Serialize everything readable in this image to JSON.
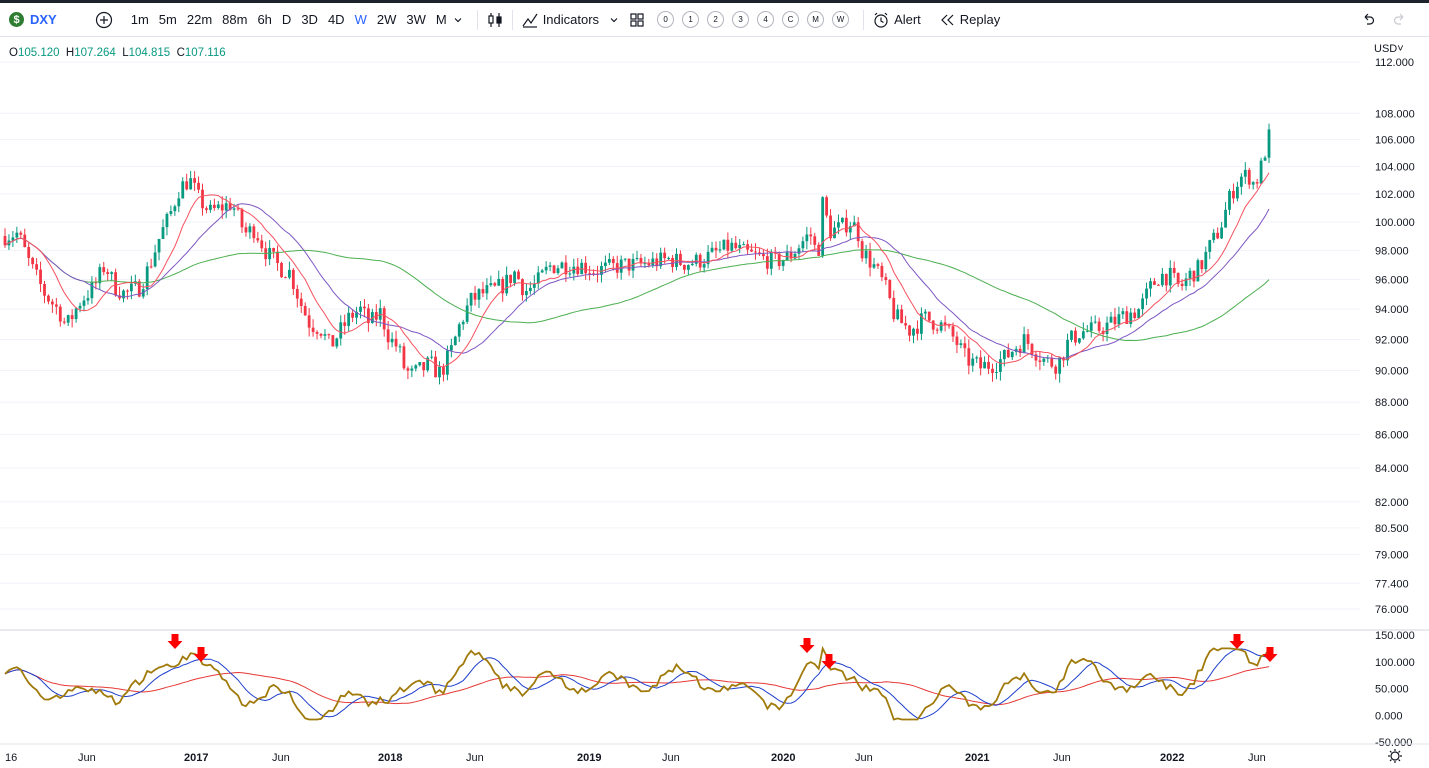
{
  "toolbar": {
    "symbol": "DXY",
    "symbol_badge": "$",
    "intervals": [
      "1m",
      "5m",
      "22m",
      "88m",
      "6h",
      "D",
      "3D",
      "4D",
      "W",
      "2W",
      "3W",
      "M"
    ],
    "active_interval": "W",
    "indicators_label": "Indicators",
    "layout_slots": [
      "0",
      "1",
      "2",
      "3",
      "4",
      "C",
      "M",
      "W"
    ],
    "alert_label": "Alert",
    "replay_label": "Replay",
    "icons": [
      "plus-circle-icon",
      "chevron-down-icon",
      "candles-icon",
      "indicators-icon",
      "layout-grid-icon",
      "alert-clock-icon",
      "replay-icon",
      "undo-icon",
      "redo-icon"
    ]
  },
  "legend": {
    "o_label": "O",
    "o_value": "105.120",
    "h_label": "H",
    "h_value": "107.264",
    "l_label": "L",
    "l_value": "104.815",
    "c_label": "C",
    "c_value": "107.116"
  },
  "currency": "USD",
  "chart_data": {
    "type": "candlestick",
    "price_axis_ticks": [
      "112.000",
      "108.000",
      "106.000",
      "104.000",
      "102.000",
      "100.000",
      "98.000",
      "96.000",
      "94.000",
      "92.000",
      "90.000",
      "88.000",
      "86.000",
      "84.000",
      "82.000",
      "80.500",
      "79.000",
      "77.400",
      "76.000"
    ],
    "osc_axis_ticks": [
      "150.000",
      "100.000",
      "50.000",
      "0.000",
      "-50.000"
    ],
    "time_axis_labels": [
      "16",
      "Jun",
      "2017",
      "Jun",
      "2018",
      "Jun",
      "2019",
      "Jun",
      "2020",
      "Jun",
      "2021",
      "Jun",
      "2022",
      "Jun"
    ],
    "price_range": [
      76,
      112
    ],
    "osc_range": [
      -50,
      150
    ],
    "colors": {
      "up": "#089981",
      "down": "#f23645",
      "ma_fast": "#f7525f",
      "ma_mid": "#7e57c2",
      "ma_slow": "#4caf50",
      "osc": "#a07a0a",
      "osc_signal": "#1e3fcc",
      "osc_slow": "#e53935",
      "arrow": "#ff0000"
    }
  }
}
